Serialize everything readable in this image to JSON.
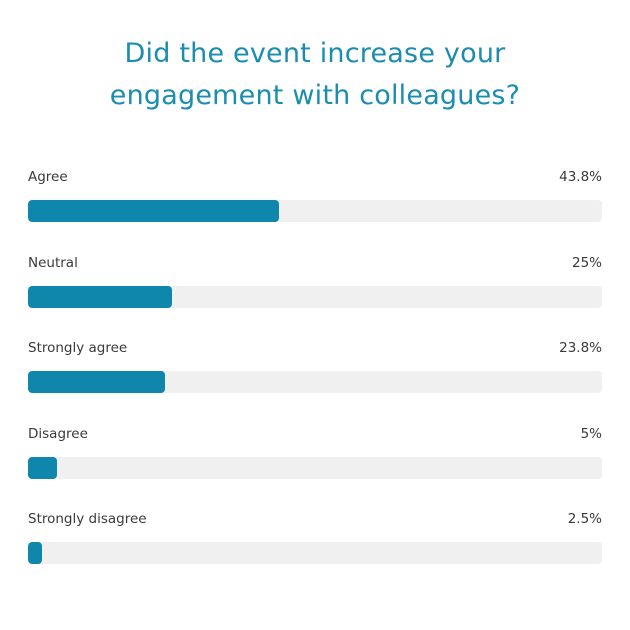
{
  "chart_data": {
    "type": "bar",
    "orientation": "horizontal",
    "title": "Did the event increase your engagement with colleagues?",
    "title_lines": [
      "Did the event increase your",
      "engagement with colleagues?"
    ],
    "categories": [
      "Agree",
      "Neutral",
      "Strongly agree",
      "Disagree",
      "Strongly disagree"
    ],
    "values": [
      43.8,
      25,
      23.8,
      5,
      2.5
    ],
    "value_labels": [
      "43.8%",
      "25%",
      "23.8%",
      "5%",
      "2.5%"
    ],
    "xlim": [
      0,
      100
    ],
    "grid": false,
    "colors": {
      "title": "#1a8db0",
      "bar": "#0f86ac",
      "track": "#f0f0f0",
      "text": "#3a3a3a"
    }
  }
}
